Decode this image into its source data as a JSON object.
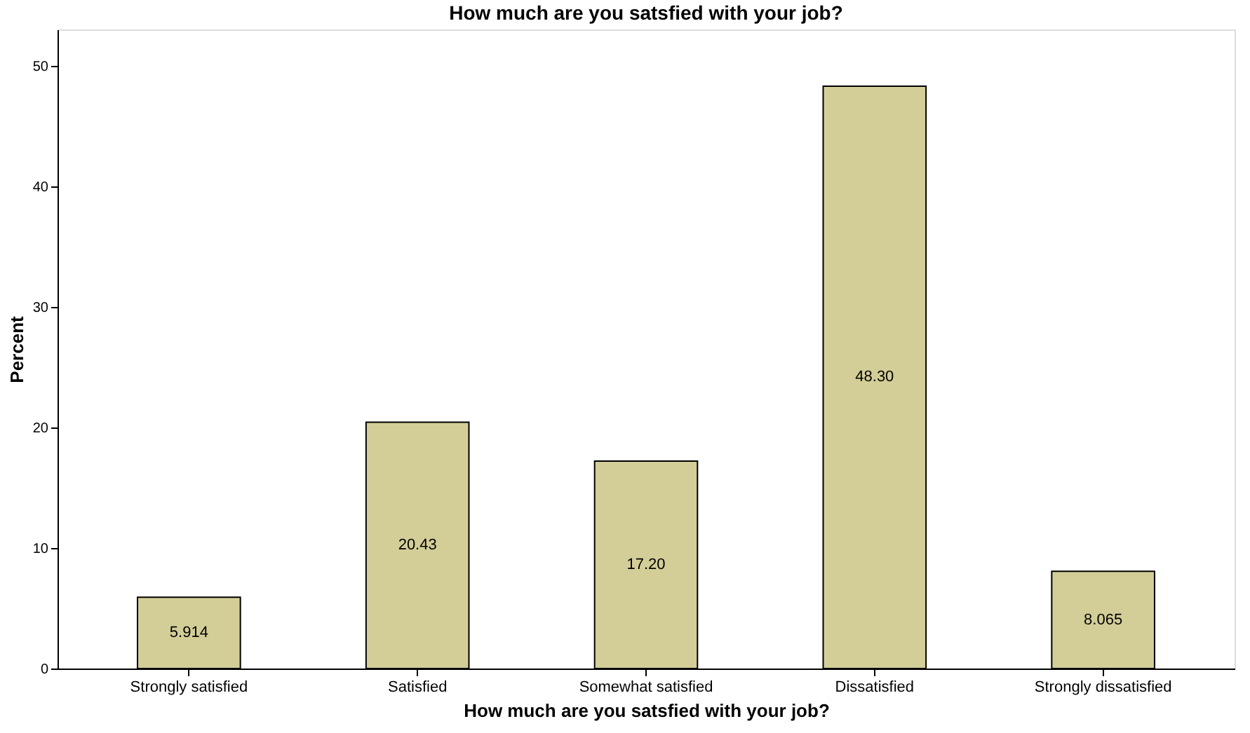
{
  "chart_data": {
    "type": "bar",
    "title": "How much are you satsfied with your job?",
    "xlabel": "How much are you satsfied with your job?",
    "ylabel": "Percent",
    "categories": [
      "Strongly satisfied",
      "Satisfied",
      "Somewhat satisfied",
      "Dissatisfied",
      "Strongly dissatisfied"
    ],
    "values": [
      5.914,
      20.43,
      17.2,
      48.3,
      8.065
    ],
    "value_labels": [
      "5.914",
      "20.43",
      "17.20",
      "48.30",
      "8.065"
    ],
    "color": "#d3ce97",
    "ylim": [
      0,
      53
    ],
    "yticks": [
      0,
      10,
      20,
      30,
      40,
      50
    ],
    "grid": false
  }
}
